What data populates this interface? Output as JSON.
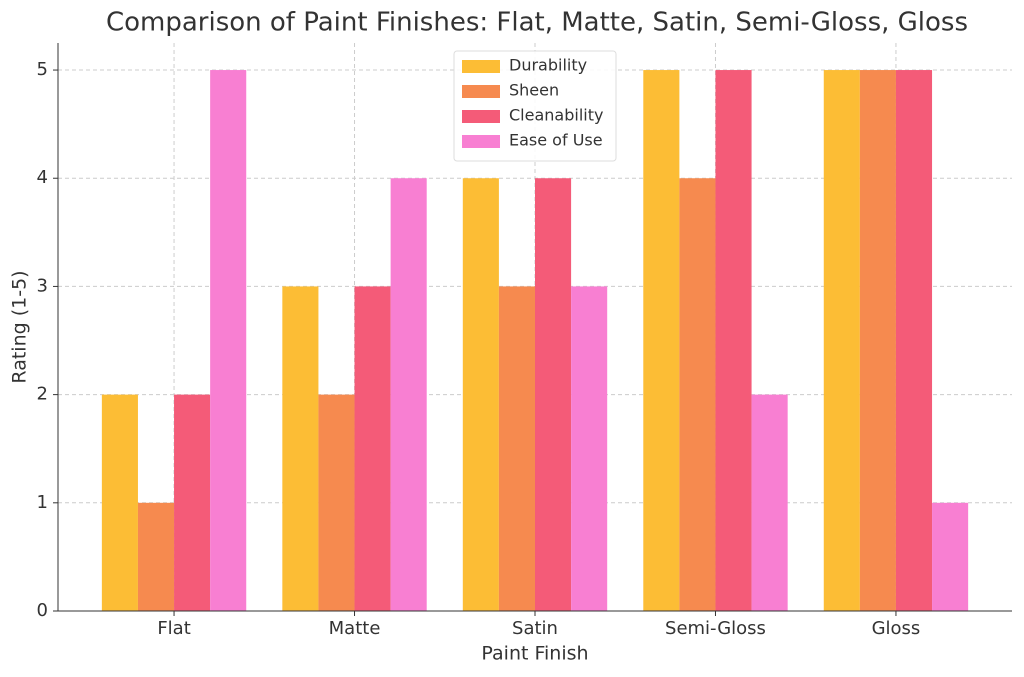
{
  "chart_data": {
    "type": "bar",
    "title": "Comparison of Paint Finishes: Flat, Matte, Satin, Semi-Gloss, Gloss",
    "x_label": "Paint Finish",
    "y_label": "Rating (1-5)",
    "categories": [
      "Flat",
      "Matte",
      "Satin",
      "Semi-Gloss",
      "Gloss"
    ],
    "series": [
      {
        "name": "Durability",
        "color": "#fcbd35",
        "values": [
          2,
          3,
          4,
          5,
          5
        ]
      },
      {
        "name": "Sheen",
        "color": "#f68a4f",
        "values": [
          1,
          2,
          3,
          4,
          5
        ]
      },
      {
        "name": "Cleanability",
        "color": "#f45b78",
        "values": [
          2,
          3,
          4,
          5,
          5
        ]
      },
      {
        "name": "Ease of Use",
        "color": "#f87fd2",
        "values": [
          5,
          4,
          3,
          2,
          1
        ]
      }
    ],
    "ylim": [
      0,
      5.25
    ],
    "yticks": [
      0,
      1,
      2,
      3,
      4,
      5
    ],
    "grid": true,
    "legend": "upper center"
  }
}
